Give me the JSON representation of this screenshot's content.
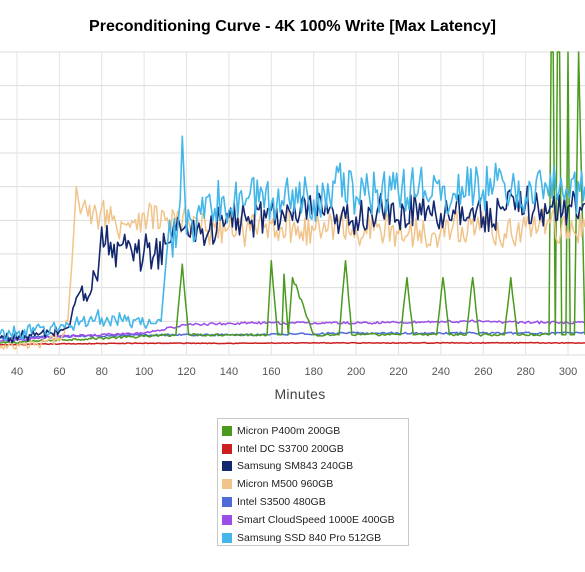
{
  "chart_data": {
    "type": "line",
    "title": "Preconditioning Curve - 4K 100% Write [Max Latency]",
    "xlabel": "Minutes",
    "ylabel": "",
    "x_ticks": [
      40,
      60,
      80,
      100,
      120,
      140,
      160,
      180,
      200,
      220,
      240,
      260,
      280,
      300
    ],
    "xlim": [
      32,
      308
    ],
    "ylim": [
      0,
      9
    ],
    "grid": true,
    "legend_position": "bottom",
    "series": [
      {
        "name": "Micron P400m 200GB",
        "color": "#4a9a1e",
        "x": [
          32,
          60,
          100,
          115,
          118,
          121,
          140,
          158,
          160,
          163,
          165,
          166,
          168,
          170,
          180,
          192,
          195,
          198,
          210,
          221,
          224,
          227,
          238,
          241,
          244,
          252,
          255,
          258,
          270,
          273,
          276,
          285,
          291,
          292,
          293,
          294,
          295,
          296,
          297,
          299,
          300,
          301,
          302,
          303,
          305,
          308
        ],
        "values": [
          0.35,
          0.45,
          0.55,
          0.6,
          2.7,
          0.6,
          0.6,
          0.6,
          2.8,
          0.6,
          0.6,
          2.4,
          0.6,
          2.3,
          0.6,
          0.6,
          2.8,
          0.6,
          0.6,
          0.6,
          2.3,
          0.6,
          0.6,
          2.3,
          0.6,
          0.6,
          2.3,
          0.6,
          0.6,
          2.3,
          0.6,
          0.6,
          0.6,
          9.0,
          9.0,
          0.6,
          9.0,
          9.0,
          0.6,
          0.6,
          9.0,
          0.6,
          0.6,
          0.6,
          9.0,
          0.6
        ]
      },
      {
        "name": "Intel DC S3700 200GB",
        "color": "#cc1f1f",
        "x": [
          32,
          60,
          100,
          150,
          200,
          250,
          308
        ],
        "values": [
          0.3,
          0.33,
          0.35,
          0.35,
          0.36,
          0.36,
          0.36
        ]
      },
      {
        "name": "Samsung SM843 240GB",
        "color": "#13276e",
        "x": [
          32,
          50,
          60,
          65,
          68,
          70,
          73,
          76,
          78,
          80,
          85,
          90,
          95,
          100,
          105,
          110,
          115,
          120,
          130,
          140,
          150,
          160,
          170,
          180,
          190,
          200,
          210,
          220,
          230,
          240,
          250,
          260,
          270,
          280,
          290,
          300,
          308
        ],
        "values": [
          0.5,
          0.6,
          0.7,
          0.9,
          1.7,
          1.9,
          1.6,
          2.5,
          2.2,
          3.8,
          2.9,
          3.3,
          2.8,
          3.1,
          3.0,
          3.3,
          3.7,
          3.9,
          3.6,
          4.1,
          3.9,
          4.3,
          4.0,
          4.4,
          3.9,
          4.1,
          4.3,
          4.0,
          4.5,
          4.2,
          4.4,
          4.1,
          4.3,
          4.5,
          4.2,
          4.4,
          4.5
        ]
      },
      {
        "name": "Micron M500 960GB",
        "color": "#f0c48a",
        "x": [
          32,
          50,
          60,
          64,
          66,
          68,
          70,
          72,
          75,
          80,
          85,
          90,
          100,
          110,
          120,
          130,
          140,
          150,
          160,
          170,
          180,
          190,
          200,
          210,
          220,
          230,
          240,
          250,
          260,
          270,
          280,
          290,
          300,
          308
        ],
        "values": [
          0.2,
          0.3,
          0.5,
          1.0,
          2.8,
          5.0,
          4.2,
          4.6,
          3.9,
          4.4,
          4.0,
          3.9,
          4.2,
          4.0,
          3.9,
          3.7,
          3.8,
          3.7,
          3.9,
          3.8,
          3.7,
          3.9,
          3.7,
          3.8,
          3.6,
          3.7,
          3.7,
          3.8,
          3.9,
          3.6,
          3.8,
          3.9,
          3.7,
          3.8
        ]
      },
      {
        "name": "Intel S3500 480GB",
        "color": "#4e6bd8",
        "x": [
          32,
          60,
          100,
          150,
          200,
          250,
          308
        ],
        "values": [
          0.5,
          0.55,
          0.6,
          0.6,
          0.65,
          0.65,
          0.65
        ]
      },
      {
        "name": "Smart CloudSpeed 1000E 400GB",
        "color": "#9b4de8",
        "x": [
          32,
          60,
          100,
          120,
          150,
          200,
          250,
          308
        ],
        "values": [
          0.4,
          0.55,
          0.65,
          0.9,
          0.95,
          0.95,
          1.0,
          0.95
        ]
      },
      {
        "name": "Samsung SSD 840 Pro 512GB",
        "color": "#44b6e8",
        "x": [
          32,
          60,
          70,
          80,
          90,
          100,
          108,
          110,
          112,
          115,
          117,
          118,
          120,
          125,
          130,
          140,
          150,
          160,
          170,
          180,
          190,
          200,
          210,
          220,
          230,
          240,
          250,
          260,
          270,
          280,
          290,
          300,
          308
        ],
        "values": [
          0.6,
          0.8,
          1.0,
          1.1,
          1.0,
          0.9,
          1.0,
          2.5,
          4.0,
          3.2,
          4.6,
          6.5,
          3.6,
          4.2,
          4.7,
          4.3,
          4.8,
          4.5,
          4.9,
          4.6,
          5.1,
          4.7,
          4.9,
          4.8,
          5.2,
          4.6,
          5.0,
          4.9,
          5.1,
          4.7,
          5.0,
          4.8,
          5.0
        ]
      }
    ]
  }
}
